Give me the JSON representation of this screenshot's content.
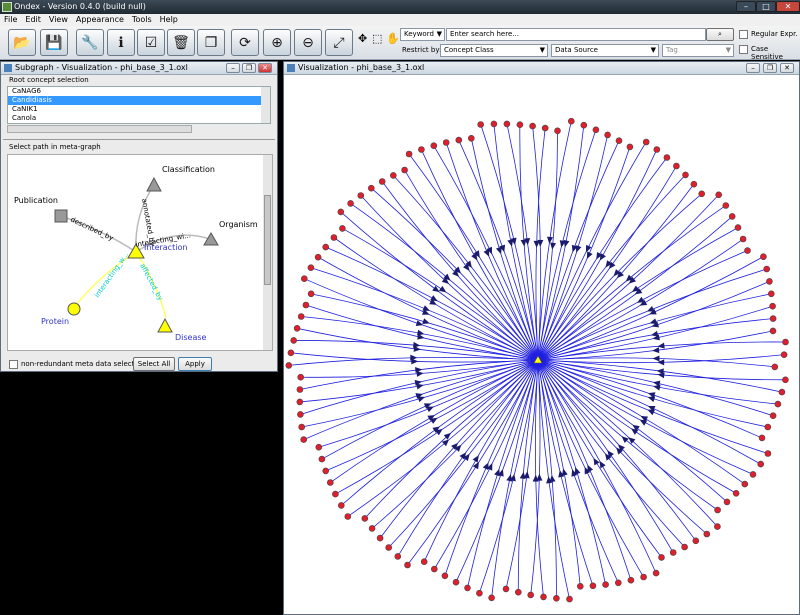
{
  "window": {
    "title": "Ondex - Version 0.4.0 (build null)"
  },
  "menu": [
    "File",
    "Edit",
    "View",
    "Appearance",
    "Tools",
    "Help"
  ],
  "toolbar": {
    "buttons": [
      {
        "name": "open-icon",
        "glyph": "📂"
      },
      {
        "name": "save-icon",
        "glyph": "💾"
      },
      {
        "name": "wrench-icon",
        "glyph": "🔧"
      },
      {
        "name": "info-icon",
        "glyph": "ℹ"
      },
      {
        "name": "checklist-icon",
        "glyph": "☑"
      },
      {
        "name": "trash-icon",
        "glyph": "🗑"
      },
      {
        "name": "copy-icon",
        "glyph": "❐"
      },
      {
        "name": "refresh-icon",
        "glyph": "⟳"
      },
      {
        "name": "zoom-in-icon",
        "glyph": "⊕"
      },
      {
        "name": "zoom-out-icon",
        "glyph": "⊖"
      },
      {
        "name": "fit-icon",
        "glyph": "⤢"
      }
    ],
    "search_mode": "Keyword",
    "search_placeholder": "Enter search here...",
    "restrict_label": "Restrict by:",
    "concept_class": "Concept Class",
    "data_source": "Data Source",
    "tag": "Tag",
    "regular_expr": "Regular Expr.",
    "case_sensitive": "Case Sensitive"
  },
  "subgraph": {
    "title": "Subgraph - Visualization - phi_base_3_1.oxl",
    "root_label": "Root concept selection",
    "concepts": [
      "CaNAG6",
      "Candidiasis",
      "CaNIK1",
      "Canola"
    ],
    "selected_index": 1,
    "path_label": "Select path in meta-graph",
    "nodes": {
      "classification": "Classification",
      "publication": "Publication",
      "organism": "Organism",
      "interaction": "Interaction",
      "protein": "Protein",
      "disease": "Disease"
    },
    "edges": {
      "annotated_by": "annotated_by",
      "described_by": "described_by",
      "interacting_with": "interacting_wi...",
      "interacting_with_cyan": "interacting_w...",
      "affected_by": "affected_by"
    },
    "nonredundant": "non-redundant meta data selection?",
    "select_all": "Select All",
    "apply": "Apply"
  },
  "visualization": {
    "title": "Visualization - phi_base_3_1.oxl"
  },
  "colors": {
    "edge": "#1f1fe0",
    "node": "#dd1f2e",
    "arrow": "#1b1b6e",
    "center": "#ffff00"
  }
}
